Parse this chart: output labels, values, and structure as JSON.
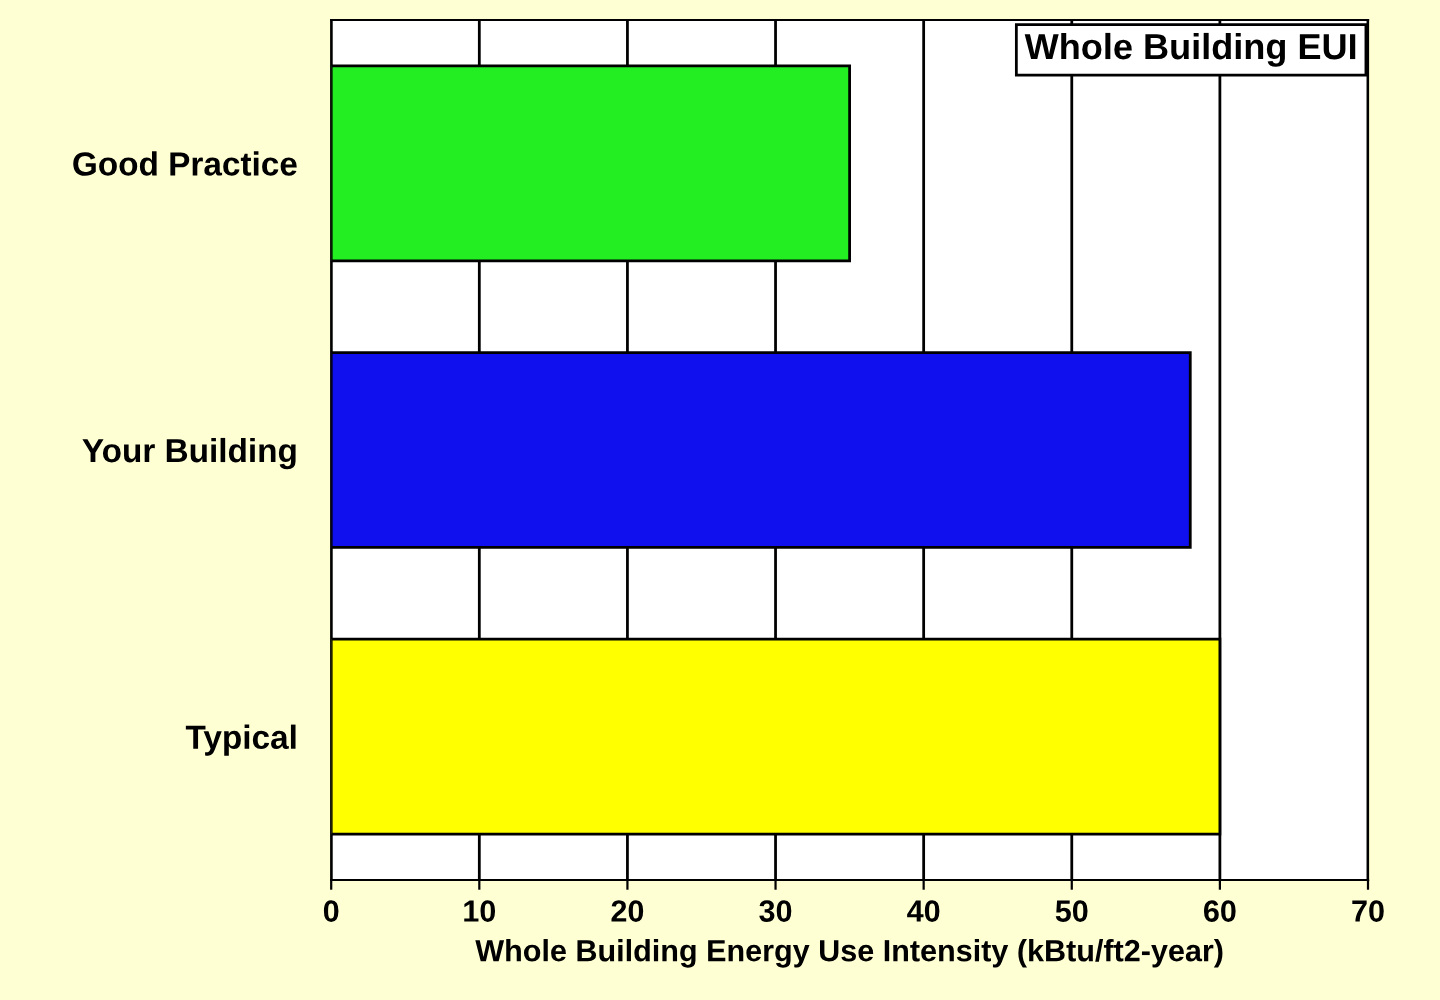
{
  "chart_data": {
    "type": "bar",
    "orientation": "horizontal",
    "title": "Whole Building EUI",
    "xlabel": "Whole Building Energy Use Intensity (kBtu/ft2-year)",
    "categories": [
      "Good Practice",
      "Your Building",
      "Typical"
    ],
    "values": [
      35,
      58,
      60
    ],
    "colors": [
      "#22ee22",
      "#1010ee",
      "#ffff00"
    ],
    "xlim": [
      0,
      70
    ],
    "xticks": [
      0,
      10,
      20,
      30,
      40,
      50,
      60,
      70
    ],
    "grid": "x",
    "legend": false
  }
}
